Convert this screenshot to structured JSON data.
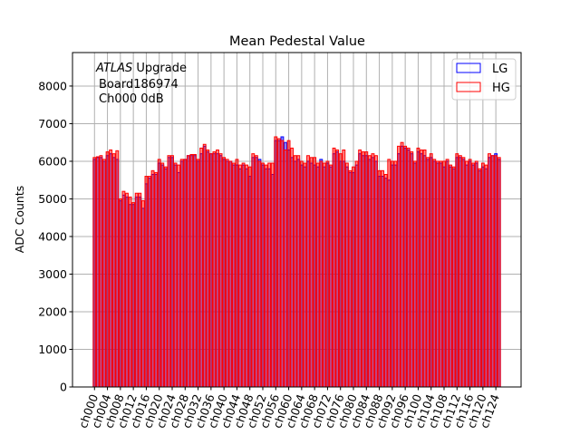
{
  "chart_data": {
    "type": "bar",
    "title": "Mean Pedestal Value",
    "xlabel": "",
    "ylabel": "ADC Counts",
    "ylim": [
      0,
      8890
    ],
    "yticks": [
      0,
      1000,
      2000,
      3000,
      4000,
      5000,
      6000,
      7000,
      8000
    ],
    "grid": true,
    "legend_position": "top-right",
    "annotation": {
      "experiment": "ATLAS",
      "line1_rest": " Upgrade",
      "line2": "Board186974",
      "line3": "Ch000 0dB"
    },
    "channel_count": 126,
    "xtick_every": 4,
    "series": [
      {
        "name": "LG",
        "color": "#0000ff",
        "values": [
          6050,
          6100,
          6100,
          6000,
          6150,
          6200,
          6100,
          6050,
          4950,
          5100,
          5050,
          4850,
          4850,
          5050,
          5050,
          4750,
          5400,
          5550,
          5650,
          5650,
          5950,
          5900,
          5800,
          6100,
          6100,
          5900,
          5700,
          6000,
          6050,
          6150,
          6150,
          6150,
          6000,
          6200,
          6400,
          6250,
          6200,
          6200,
          6200,
          6150,
          6050,
          6000,
          6000,
          5900,
          5900,
          5800,
          5900,
          5800,
          5600,
          6100,
          6100,
          6050,
          5900,
          5800,
          5800,
          5650,
          6550,
          6550,
          6650,
          6500,
          6300,
          6100,
          6000,
          6050,
          5900,
          5850,
          6000,
          5950,
          5900,
          5850,
          6050,
          5850,
          5950,
          5850,
          6200,
          6250,
          6000,
          6000,
          5850,
          5700,
          5700,
          5900,
          6200,
          6150,
          6150,
          6050,
          6100,
          6000,
          5600,
          5600,
          5550,
          5500,
          5900,
          5900,
          6200,
          6400,
          6350,
          6300,
          6200,
          5950,
          6250,
          6200,
          6150,
          6050,
          6100,
          6000,
          5950,
          5950,
          5850,
          6000,
          5850,
          5800,
          6100,
          6100,
          6050,
          5900,
          6000,
          5900,
          5950,
          5750,
          5850,
          5800,
          6100,
          6150,
          6200,
          6050
        ]
      },
      {
        "name": "HG",
        "color": "#ff0000",
        "values": [
          6100,
          6120,
          6150,
          6050,
          6250,
          6300,
          6200,
          6280,
          5000,
          5200,
          5150,
          5050,
          4900,
          5150,
          5150,
          4950,
          5600,
          5600,
          5750,
          5700,
          6050,
          5950,
          5850,
          6150,
          6150,
          5950,
          5900,
          6050,
          6050,
          6150,
          6180,
          6180,
          6050,
          6350,
          6450,
          6300,
          6200,
          6250,
          6300,
          6200,
          6100,
          6050,
          6000,
          5950,
          6050,
          5900,
          5950,
          5900,
          5850,
          6200,
          6150,
          6000,
          5950,
          5900,
          5950,
          5950,
          6650,
          6600,
          6550,
          6300,
          6550,
          6350,
          6150,
          6150,
          6000,
          5950,
          6150,
          6100,
          6100,
          5950,
          6000,
          5950,
          6000,
          5900,
          6350,
          6300,
          6200,
          6300,
          5950,
          5750,
          5850,
          6000,
          6300,
          6250,
          6250,
          6150,
          6200,
          6150,
          5750,
          5750,
          5650,
          6050,
          6000,
          6000,
          6400,
          6500,
          6400,
          6350,
          6250,
          6000,
          6350,
          6300,
          6300,
          6100,
          6200,
          6050,
          6000,
          6000,
          6000,
          6050,
          5900,
          5850,
          6200,
          6150,
          6100,
          6000,
          6050,
          5950,
          6000,
          5800,
          5950,
          5900,
          6200,
          6150,
          6150,
          6100
        ]
      }
    ]
  }
}
